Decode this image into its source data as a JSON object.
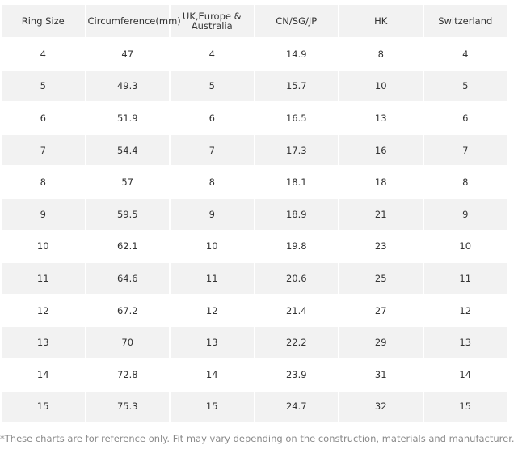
{
  "table": {
    "headers": [
      "Ring Size",
      "Circumference(mm)",
      "UK,Europe & Australia",
      "CN/SG/JP",
      "HK",
      "Switzerland"
    ],
    "rows": [
      [
        "4",
        "47",
        "4",
        "14.9",
        "8",
        "4"
      ],
      [
        "5",
        "49.3",
        "5",
        "15.7",
        "10",
        "5"
      ],
      [
        "6",
        "51.9",
        "6",
        "16.5",
        "13",
        "6"
      ],
      [
        "7",
        "54.4",
        "7",
        "17.3",
        "16",
        "7"
      ],
      [
        "8",
        "57",
        "8",
        "18.1",
        "18",
        "8"
      ],
      [
        "9",
        "59.5",
        "9",
        "18.9",
        "21",
        "9"
      ],
      [
        "10",
        "62.1",
        "10",
        "19.8",
        "23",
        "10"
      ],
      [
        "11",
        "64.6",
        "11",
        "20.6",
        "25",
        "11"
      ],
      [
        "12",
        "67.2",
        "12",
        "21.4",
        "27",
        "12"
      ],
      [
        "13",
        "70",
        "13",
        "22.2",
        "29",
        "13"
      ],
      [
        "14",
        "72.8",
        "14",
        "23.9",
        "31",
        "14"
      ],
      [
        "15",
        "75.3",
        "15",
        "24.7",
        "32",
        "15"
      ]
    ]
  },
  "footnote": "*These charts are for reference only. Fit may vary depending on the construction, materials and manufacturer."
}
